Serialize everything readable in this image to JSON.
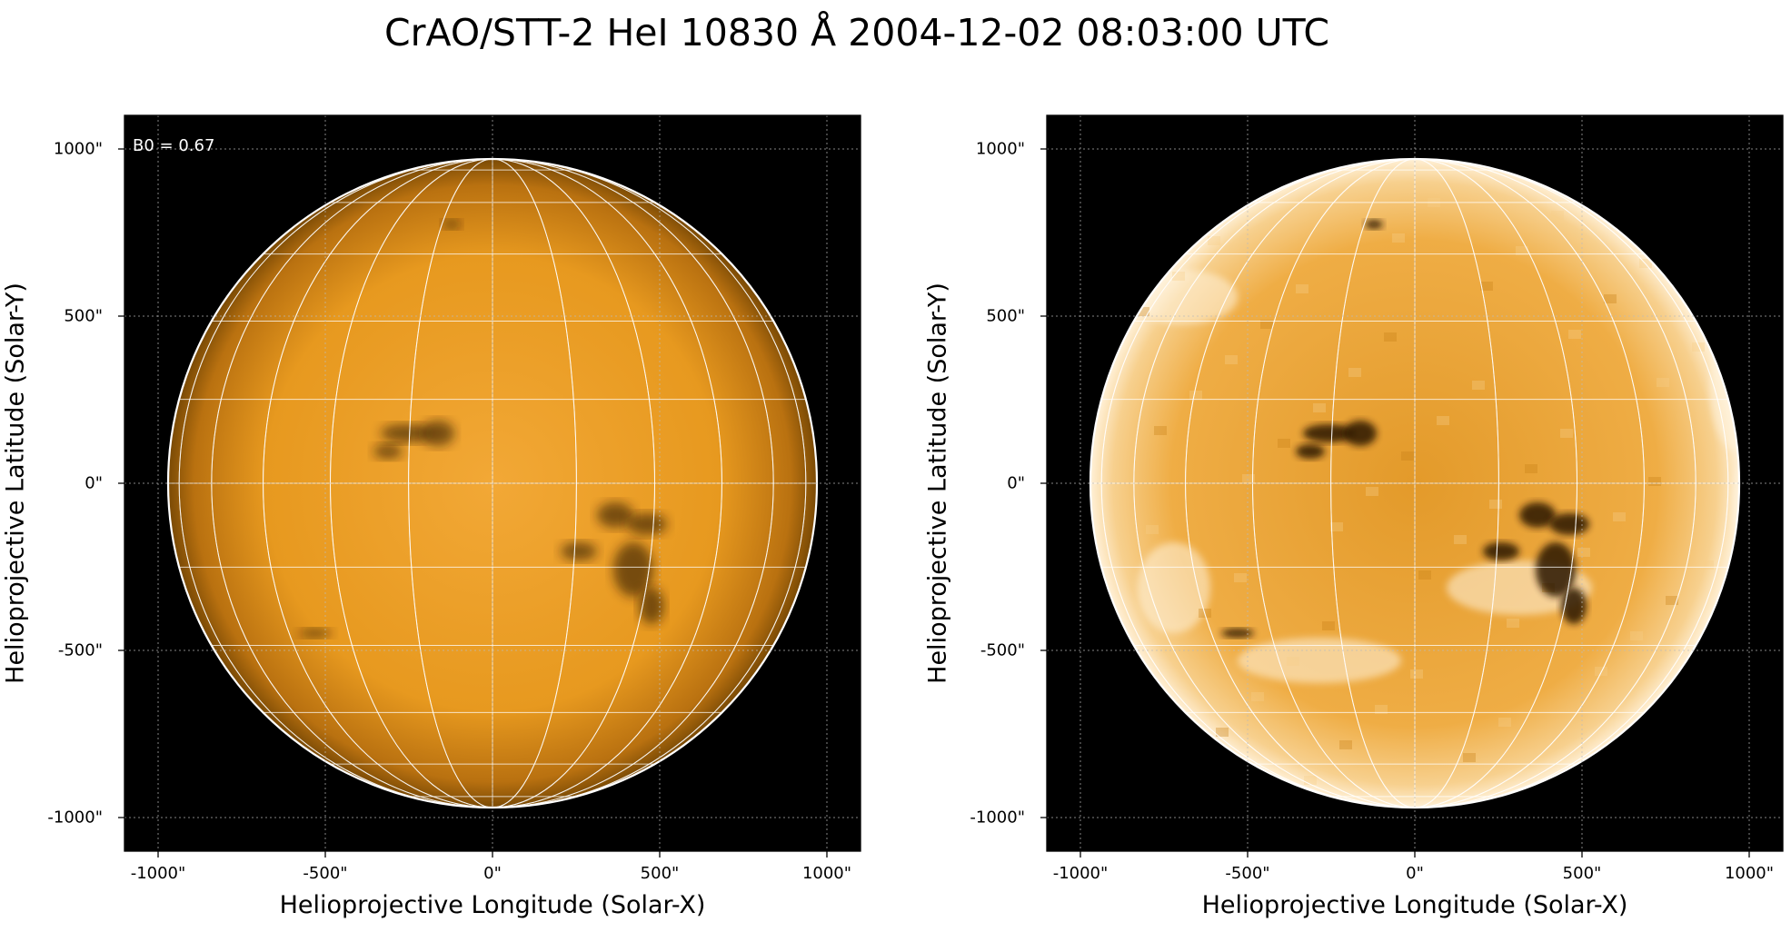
{
  "title": "CrAO/STT-2 HeI 10830 Å 2004-12-02 08:03:00 UTC",
  "colors": {
    "background": "#000000",
    "disk_bright": "#f2a836",
    "disk_dark": "#7a4a05",
    "grid": "#ffffff",
    "active_region": "#2a1400"
  },
  "panels": [
    {
      "id": "left",
      "annotation": "B0 = 0.67",
      "xlabel": "Helioprojective Longitude (Solar-X)",
      "ylabel": "Helioprojective Latitude (Solar-Y)",
      "xticks": [
        "-1000\"",
        "-500\"",
        "0\"",
        "500\"",
        "1000\""
      ],
      "yticks": [
        "1000\"",
        "500\"",
        "0\"",
        "-500\"",
        "-1000\""
      ],
      "style": "smooth"
    },
    {
      "id": "right",
      "annotation": "",
      "xlabel": "Helioprojective Longitude (Solar-X)",
      "ylabel": "Helioprojective Latitude (Solar-Y)",
      "xticks": [
        "-1000\"",
        "-500\"",
        "0\"",
        "500\"",
        "1000\""
      ],
      "yticks": [
        "1000\"",
        "500\"",
        "0\"",
        "-500\"",
        "-1000\""
      ],
      "style": "enhanced"
    }
  ]
}
